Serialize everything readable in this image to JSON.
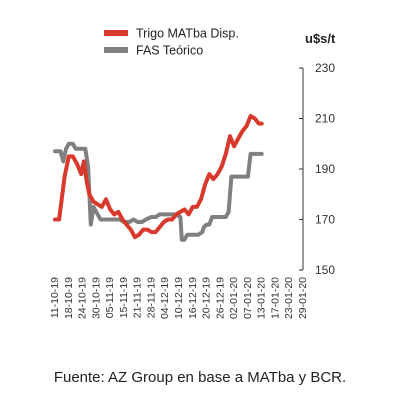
{
  "chart_data": {
    "type": "line",
    "unit": "u$s/t",
    "ylim": [
      150,
      230
    ],
    "yticks": [
      150,
      170,
      190,
      210,
      230
    ],
    "x": [
      "11-10-19",
      "18-10-19",
      "24-10-19",
      "30-10-19",
      "05-11-19",
      "15-11-19",
      "21-11-19",
      "28-11-19",
      "04-12-19",
      "10-12-19",
      "16-12-19",
      "20-12-19",
      "26-12-19",
      "02-01-20",
      "07-01-20",
      "13-01-20",
      "17-01-20",
      "23-01-20",
      "29-01-20"
    ],
    "series": [
      {
        "name": "Trigo MATba Disp.",
        "color": "#d9382c",
        "values": [
          [
            0,
            170
          ],
          [
            0.3,
            170
          ],
          [
            0.7,
            187
          ],
          [
            1.0,
            195
          ],
          [
            1.3,
            195
          ],
          [
            1.6,
            192
          ],
          [
            1.9,
            188
          ],
          [
            2.1,
            193
          ],
          [
            2.3,
            185
          ],
          [
            2.5,
            180
          ],
          [
            2.8,
            177
          ],
          [
            3.1,
            176
          ],
          [
            3.4,
            175
          ],
          [
            3.7,
            178
          ],
          [
            4.0,
            174
          ],
          [
            4.3,
            172
          ],
          [
            4.6,
            173
          ],
          [
            4.9,
            170
          ],
          [
            5.2,
            168
          ],
          [
            5.5,
            166
          ],
          [
            5.8,
            163
          ],
          [
            6.1,
            164
          ],
          [
            6.4,
            166
          ],
          [
            6.7,
            166
          ],
          [
            7.0,
            165
          ],
          [
            7.3,
            165
          ],
          [
            7.6,
            167
          ],
          [
            7.9,
            169
          ],
          [
            8.2,
            170
          ],
          [
            8.5,
            170
          ],
          [
            8.8,
            172
          ],
          [
            9.1,
            173
          ],
          [
            9.4,
            174
          ],
          [
            9.7,
            172
          ],
          [
            10.0,
            175
          ],
          [
            10.3,
            175
          ],
          [
            10.6,
            178
          ],
          [
            10.9,
            184
          ],
          [
            11.2,
            188
          ],
          [
            11.5,
            186
          ],
          [
            11.8,
            188
          ],
          [
            12.1,
            191
          ],
          [
            12.4,
            196
          ],
          [
            12.7,
            203
          ],
          [
            13.0,
            199
          ],
          [
            13.3,
            202
          ],
          [
            13.6,
            205
          ],
          [
            13.9,
            207
          ],
          [
            14.2,
            211
          ],
          [
            14.5,
            210
          ],
          [
            14.8,
            208
          ],
          [
            15.0,
            208
          ]
        ]
      },
      {
        "name": "FAS Teórico",
        "color": "#808080",
        "values": [
          [
            0,
            197
          ],
          [
            0.4,
            197
          ],
          [
            0.6,
            193
          ],
          [
            0.8,
            198
          ],
          [
            1.0,
            200
          ],
          [
            1.3,
            200
          ],
          [
            1.5,
            198
          ],
          [
            1.8,
            198
          ],
          [
            2.2,
            198
          ],
          [
            2.4,
            191
          ],
          [
            2.6,
            168
          ],
          [
            2.8,
            175
          ],
          [
            3.1,
            172
          ],
          [
            3.3,
            170
          ],
          [
            3.6,
            170
          ],
          [
            4.0,
            170
          ],
          [
            4.4,
            170
          ],
          [
            4.7,
            170
          ],
          [
            5.0,
            169
          ],
          [
            5.4,
            169
          ],
          [
            5.7,
            170
          ],
          [
            6.0,
            169
          ],
          [
            6.3,
            169
          ],
          [
            6.6,
            170
          ],
          [
            7.0,
            171
          ],
          [
            7.3,
            171
          ],
          [
            7.6,
            172
          ],
          [
            8.0,
            172
          ],
          [
            8.4,
            172
          ],
          [
            8.8,
            172
          ],
          [
            9.1,
            171
          ],
          [
            9.2,
            162
          ],
          [
            9.4,
            162
          ],
          [
            9.6,
            164
          ],
          [
            10.0,
            164
          ],
          [
            10.4,
            164
          ],
          [
            10.7,
            165
          ],
          [
            10.8,
            167
          ],
          [
            11.0,
            168
          ],
          [
            11.2,
            168
          ],
          [
            11.4,
            171
          ],
          [
            11.6,
            171
          ],
          [
            12.0,
            171
          ],
          [
            12.4,
            171
          ],
          [
            12.6,
            173
          ],
          [
            12.8,
            187
          ],
          [
            13.2,
            187
          ],
          [
            13.6,
            187
          ],
          [
            14.0,
            187
          ],
          [
            14.2,
            196
          ],
          [
            14.6,
            196
          ],
          [
            15.0,
            196
          ]
        ]
      }
    ]
  },
  "source": "Fuente: AZ Group en base a MATba y BCR."
}
